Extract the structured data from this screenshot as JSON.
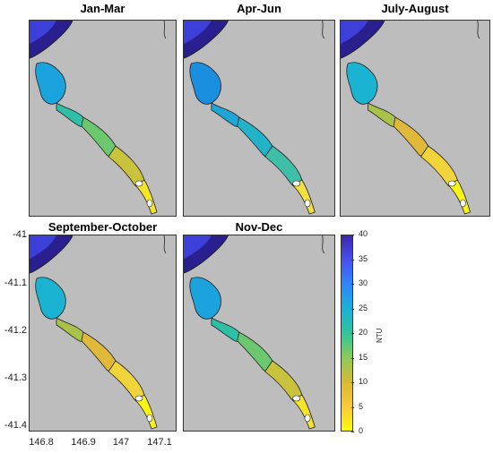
{
  "panels": [
    {
      "title": "Jan-Mar",
      "level": "mid"
    },
    {
      "title": "Apr-Jun",
      "level": "low"
    },
    {
      "title": "July-August",
      "level": "high"
    },
    {
      "title": "September-October",
      "level": "high"
    },
    {
      "title": "Nov-Dec",
      "level": "mid"
    }
  ],
  "y_axis": {
    "ticks": [
      "-41",
      "-41.1",
      "-41.2",
      "-41.3",
      "-41.4"
    ]
  },
  "x_axis": {
    "ticks": [
      "146.8",
      "146.9",
      "147",
      "147.1"
    ]
  },
  "colorbar": {
    "label": "NTU",
    "min": 0,
    "max": 40,
    "ticks": [
      "40",
      "35",
      "30",
      "25",
      "20",
      "15",
      "10",
      "5",
      "0"
    ],
    "colors": [
      "#3e26a8",
      "#4850f0",
      "#2e87f7",
      "#1ab0d8",
      "#31c59b",
      "#8cca5a",
      "#d7ba32",
      "#fbc937",
      "#f9fb0e"
    ]
  },
  "colors": {
    "land": "#bdbdbd",
    "sea_deep": "#2a1f8f",
    "sea_mid": "#3c3fd8",
    "sea_shallow": "#1aa0e8"
  }
}
